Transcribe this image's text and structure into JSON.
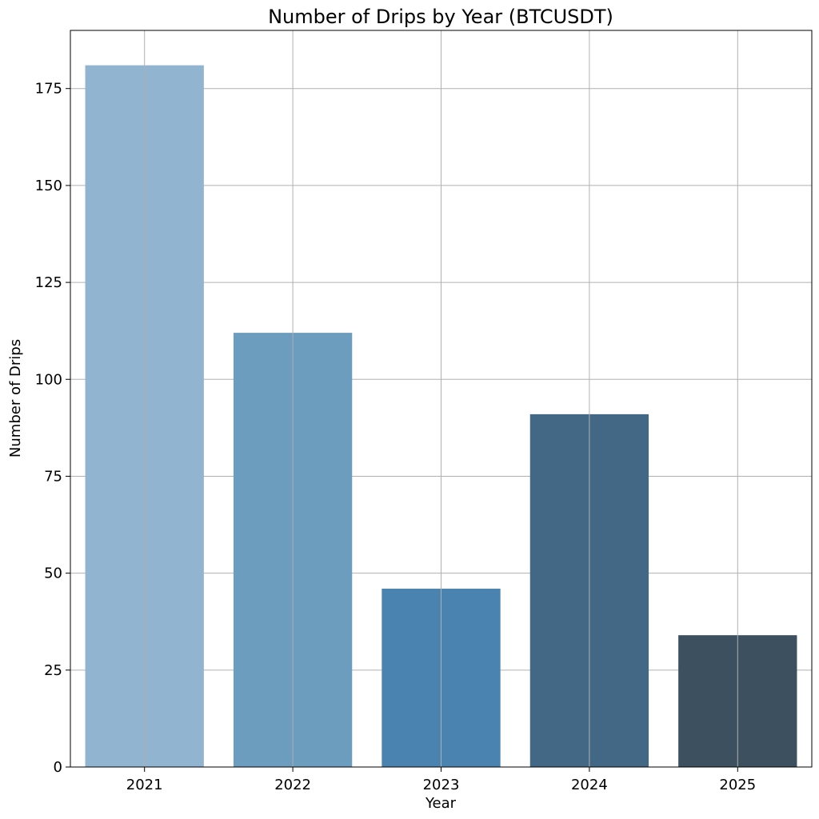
{
  "chart_data": {
    "type": "bar",
    "title": "Number of Drips by Year (BTCUSDT)",
    "xlabel": "Year",
    "ylabel": "Number of Drips",
    "categories": [
      "2021",
      "2022",
      "2023",
      "2024",
      "2025"
    ],
    "values": [
      181,
      112,
      46,
      91,
      34
    ],
    "colors": [
      "#91b4d1",
      "#6c9dbf",
      "#4a83b0",
      "#426885",
      "#3d5060"
    ],
    "ylim": [
      0,
      190
    ],
    "yticks": [
      0,
      25,
      50,
      75,
      100,
      125,
      150,
      175
    ],
    "grid": true,
    "legend": "none"
  }
}
